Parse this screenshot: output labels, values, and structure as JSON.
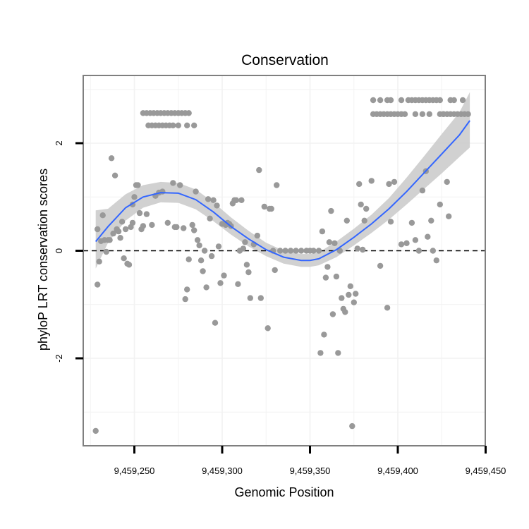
{
  "chart_data": {
    "type": "scatter",
    "title": "Conservation",
    "xlabel": "Genomic Position",
    "ylabel": "phyloP LRT conservation scores",
    "xlim": [
      9459220,
      9459450
    ],
    "ylim": [
      -3.5,
      3.3
    ],
    "x_ticks": [
      9459250,
      9459300,
      9459350,
      9459400,
      9459450
    ],
    "x_tick_labels": [
      "9,459,250",
      "9,459,300",
      "9,459,350",
      "9,459,400",
      "9,459,450"
    ],
    "y_ticks": [
      -2,
      0,
      2
    ],
    "y_tick_labels": [
      "-2",
      "0",
      "2"
    ],
    "reference_line": {
      "y": 0,
      "style": "dashed"
    },
    "grid": true,
    "colors": {
      "points": "#999999",
      "smooth_line": "#3366ff",
      "confidence_band": "#cccccc",
      "grid": "#f2f2f2",
      "border": "#7f7f7f",
      "reference": "#000000"
    },
    "points": [
      [
        9459228,
        -3.35
      ],
      [
        9459229,
        -0.63
      ],
      [
        9459229,
        0.4
      ],
      [
        9459230,
        -0.2
      ],
      [
        9459231,
        0.18
      ],
      [
        9459232,
        0.66
      ],
      [
        9459233,
        0.2
      ],
      [
        9459234,
        -0.02
      ],
      [
        9459235,
        0.2
      ],
      [
        9459236,
        0.2
      ],
      [
        9459237,
        1.72
      ],
      [
        9459238,
        0.32
      ],
      [
        9459239,
        1.4
      ],
      [
        9459240,
        0.4
      ],
      [
        9459241,
        0.36
      ],
      [
        9459242,
        0.24
      ],
      [
        9459243,
        0.54
      ],
      [
        9459244,
        -0.14
      ],
      [
        9459245,
        0.4
      ],
      [
        9459246,
        -0.24
      ],
      [
        9459247,
        -0.26
      ],
      [
        9459248,
        0.44
      ],
      [
        9459249,
        0.52
      ],
      [
        9459249,
        0.86
      ],
      [
        9459250,
        1.0
      ],
      [
        9459251,
        1.22
      ],
      [
        9459252,
        1.22
      ],
      [
        9459253,
        0.7
      ],
      [
        9459254,
        0.4
      ],
      [
        9459255,
        0.46
      ],
      [
        9459257,
        0.68
      ],
      [
        9459260,
        0.48
      ],
      [
        9459262,
        1.02
      ],
      [
        9459264,
        1.08
      ],
      [
        9459266,
        1.1
      ],
      [
        9459269,
        0.52
      ],
      [
        9459272,
        1.26
      ],
      [
        9459273,
        0.44
      ],
      [
        9459274,
        0.44
      ],
      [
        9459276,
        1.22
      ],
      [
        9459278,
        0.42
      ],
      [
        9459279,
        -0.9
      ],
      [
        9459280,
        -0.72
      ],
      [
        9459281,
        -0.16
      ],
      [
        9459283,
        0.48
      ],
      [
        9459284,
        0.38
      ],
      [
        9459285,
        1.1
      ],
      [
        9459286,
        0.2
      ],
      [
        9459287,
        0.1
      ],
      [
        9459288,
        -0.18
      ],
      [
        9459289,
        -0.38
      ],
      [
        9459290,
        0.0
      ],
      [
        9459291,
        -0.68
      ],
      [
        9459292,
        0.96
      ],
      [
        9459293,
        0.6
      ],
      [
        9459294,
        -0.1
      ],
      [
        9459295,
        0.94
      ],
      [
        9459296,
        -1.34
      ],
      [
        9459297,
        0.84
      ],
      [
        9459298,
        0.08
      ],
      [
        9459299,
        -0.6
      ],
      [
        9459300,
        0.5
      ],
      [
        9459301,
        -0.46
      ],
      [
        9459302,
        0.48
      ],
      [
        9459303,
        0.52
      ],
      [
        9459304,
        0.5
      ],
      [
        9459305,
        0.46
      ],
      [
        9459306,
        0.88
      ],
      [
        9459307,
        0.94
      ],
      [
        9459308,
        0.94
      ],
      [
        9459309,
        -0.62
      ],
      [
        9459310,
        0.0
      ],
      [
        9459311,
        0.94
      ],
      [
        9459312,
        0.04
      ],
      [
        9459313,
        0.16
      ],
      [
        9459314,
        -0.26
      ],
      [
        9459315,
        -0.4
      ],
      [
        9459316,
        -0.88
      ],
      [
        9459318,
        0.12
      ],
      [
        9459320,
        0.28
      ],
      [
        9459321,
        1.5
      ],
      [
        9459322,
        -0.88
      ],
      [
        9459324,
        0.82
      ],
      [
        9459326,
        -1.44
      ],
      [
        9459327,
        0.78
      ],
      [
        9459328,
        0.78
      ],
      [
        9459329,
        0.0
      ],
      [
        9459330,
        -0.36
      ],
      [
        9459331,
        1.22
      ],
      [
        9459333,
        0.0
      ],
      [
        9459336,
        0.0
      ],
      [
        9459339,
        0.0
      ],
      [
        9459342,
        0.0
      ],
      [
        9459345,
        0.0
      ],
      [
        9459348,
        0.0
      ],
      [
        9459350,
        0.0
      ],
      [
        9459352,
        0.0
      ],
      [
        9459355,
        0.0
      ],
      [
        9459356,
        -1.9
      ],
      [
        9459357,
        0.36
      ],
      [
        9459358,
        -1.56
      ],
      [
        9459359,
        -0.5
      ],
      [
        9459360,
        -0.3
      ],
      [
        9459361,
        0.16
      ],
      [
        9459362,
        0.74
      ],
      [
        9459363,
        -1.18
      ],
      [
        9459364,
        0.14
      ],
      [
        9459365,
        -0.48
      ],
      [
        9459366,
        -1.9
      ],
      [
        9459367,
        0.0
      ],
      [
        9459368,
        -0.88
      ],
      [
        9459369,
        -1.08
      ],
      [
        9459370,
        -1.14
      ],
      [
        9459371,
        0.56
      ],
      [
        9459372,
        -0.82
      ],
      [
        9459373,
        -0.66
      ],
      [
        9459374,
        -3.26
      ],
      [
        9459375,
        -0.96
      ],
      [
        9459376,
        -0.8
      ],
      [
        9459377,
        0.04
      ],
      [
        9459378,
        1.24
      ],
      [
        9459379,
        0.86
      ],
      [
        9459380,
        0.02
      ],
      [
        9459381,
        0.56
      ],
      [
        9459382,
        0.78
      ],
      [
        9459385,
        1.3
      ],
      [
        9459390,
        -0.28
      ],
      [
        9459394,
        -1.06
      ],
      [
        9459395,
        1.24
      ],
      [
        9459396,
        0.54
      ],
      [
        9459398,
        1.28
      ],
      [
        9459402,
        0.12
      ],
      [
        9459405,
        0.14
      ],
      [
        9459408,
        0.52
      ],
      [
        9459410,
        0.2
      ],
      [
        9459412,
        0.0
      ],
      [
        9459414,
        1.12
      ],
      [
        9459416,
        1.48
      ],
      [
        9459417,
        0.26
      ],
      [
        9459419,
        0.56
      ],
      [
        9459420,
        0.0
      ],
      [
        9459422,
        -0.18
      ],
      [
        9459424,
        0.86
      ],
      [
        9459426,
        2.54
      ],
      [
        9459428,
        1.28
      ],
      [
        9459429,
        0.64
      ],
      [
        9459255,
        2.56
      ],
      [
        9459257,
        2.56
      ],
      [
        9459259,
        2.56
      ],
      [
        9459261,
        2.56
      ],
      [
        9459263,
        2.56
      ],
      [
        9459265,
        2.56
      ],
      [
        9459267,
        2.56
      ],
      [
        9459269,
        2.56
      ],
      [
        9459271,
        2.56
      ],
      [
        9459273,
        2.56
      ],
      [
        9459275,
        2.56
      ],
      [
        9459277,
        2.56
      ],
      [
        9459279,
        2.56
      ],
      [
        9459281,
        2.56
      ],
      [
        9459258,
        2.33
      ],
      [
        9459260,
        2.33
      ],
      [
        9459262,
        2.33
      ],
      [
        9459264,
        2.33
      ],
      [
        9459266,
        2.33
      ],
      [
        9459268,
        2.33
      ],
      [
        9459270,
        2.33
      ],
      [
        9459272,
        2.33
      ],
      [
        9459275,
        2.33
      ],
      [
        9459280,
        2.33
      ],
      [
        9459284,
        2.33
      ],
      [
        9459386,
        2.8
      ],
      [
        9459390,
        2.8
      ],
      [
        9459394,
        2.8
      ],
      [
        9459396,
        2.8
      ],
      [
        9459402,
        2.8
      ],
      [
        9459406,
        2.8
      ],
      [
        9459408,
        2.8
      ],
      [
        9459410,
        2.8
      ],
      [
        9459412,
        2.8
      ],
      [
        9459414,
        2.8
      ],
      [
        9459416,
        2.8
      ],
      [
        9459418,
        2.8
      ],
      [
        9459420,
        2.8
      ],
      [
        9459422,
        2.8
      ],
      [
        9459424,
        2.8
      ],
      [
        9459430,
        2.8
      ],
      [
        9459432,
        2.8
      ],
      [
        9459437,
        2.8
      ],
      [
        9459386,
        2.54
      ],
      [
        9459388,
        2.54
      ],
      [
        9459390,
        2.54
      ],
      [
        9459392,
        2.54
      ],
      [
        9459394,
        2.54
      ],
      [
        9459396,
        2.54
      ],
      [
        9459398,
        2.54
      ],
      [
        9459400,
        2.54
      ],
      [
        9459402,
        2.54
      ],
      [
        9459404,
        2.54
      ],
      [
        9459410,
        2.54
      ],
      [
        9459414,
        2.54
      ],
      [
        9459418,
        2.54
      ],
      [
        9459424,
        2.54
      ],
      [
        9459426,
        2.54
      ],
      [
        9459428,
        2.54
      ],
      [
        9459430,
        2.54
      ],
      [
        9459432,
        2.54
      ],
      [
        9459434,
        2.54
      ],
      [
        9459436,
        2.54
      ],
      [
        9459438,
        2.54
      ],
      [
        9459440,
        2.54
      ]
    ],
    "smooth": {
      "x": [
        9459228,
        9459235,
        9459245,
        9459255,
        9459265,
        9459275,
        9459285,
        9459295,
        9459305,
        9459315,
        9459325,
        9459335,
        9459345,
        9459350,
        9459355,
        9459365,
        9459375,
        9459385,
        9459395,
        9459405,
        9459415,
        9459425,
        9459435,
        9459441
      ],
      "y": [
        0.17,
        0.45,
        0.8,
        1.0,
        1.08,
        1.07,
        0.95,
        0.72,
        0.45,
        0.22,
        0.02,
        -0.12,
        -0.18,
        -0.18,
        -0.15,
        0.02,
        0.25,
        0.5,
        0.78,
        1.1,
        1.45,
        1.8,
        2.15,
        2.42
      ],
      "ci_low": [
        -0.33,
        0.15,
        0.56,
        0.8,
        0.9,
        0.89,
        0.77,
        0.55,
        0.3,
        0.08,
        -0.1,
        -0.24,
        -0.3,
        -0.3,
        -0.27,
        -0.12,
        0.1,
        0.33,
        0.58,
        0.86,
        1.15,
        1.44,
        1.74,
        1.92
      ],
      "ci_high": [
        0.75,
        0.78,
        1.05,
        1.22,
        1.28,
        1.26,
        1.14,
        0.9,
        0.62,
        0.37,
        0.15,
        0.0,
        -0.06,
        -0.06,
        -0.03,
        0.17,
        0.41,
        0.67,
        0.98,
        1.36,
        1.76,
        2.17,
        2.57,
        2.95
      ]
    }
  }
}
